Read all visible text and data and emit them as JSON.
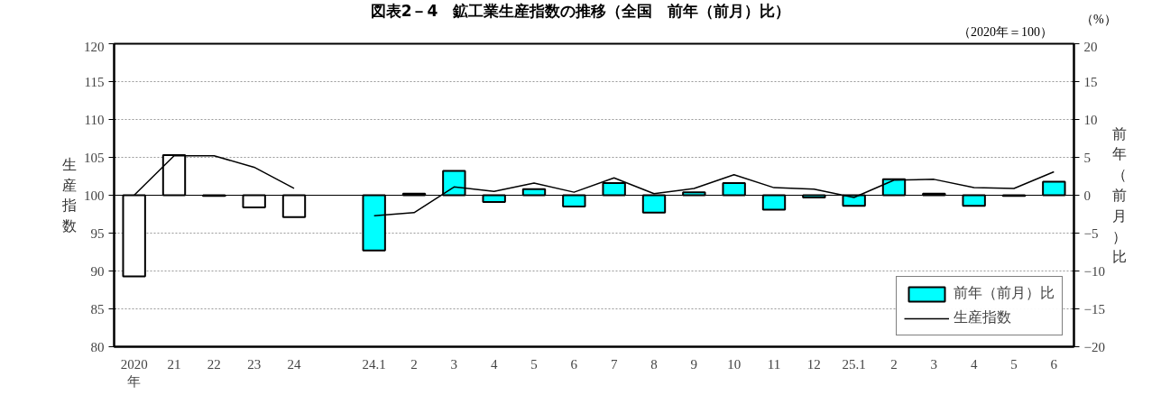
{
  "chart_data": {
    "type": "bar",
    "title": "図表2－4　鉱工業生産指数の推移（全国　前年（前月）比）",
    "ylabel": "生産指数",
    "y2label": "前年（前月）比",
    "annotations": [
      "（2020年＝100）",
      "（%）"
    ],
    "categories": [
      "2020\n年",
      "21",
      "22",
      "23",
      "24",
      null,
      "24.1",
      "2",
      "3",
      "4",
      "5",
      "6",
      "7",
      "8",
      "9",
      "10",
      "11",
      "12",
      "25.1",
      "2",
      "3",
      "4",
      "5",
      "6"
    ],
    "series": [
      {
        "name": "前年（前月）比",
        "axis": "y2",
        "colors": [
          "#ffffff",
          "#ffffff",
          "#ffffff",
          "#ffffff",
          "#ffffff",
          null,
          "#00ffff",
          "#00ffff",
          "#00ffff",
          "#00ffff",
          "#00ffff",
          "#00ffff",
          "#00ffff",
          "#00ffff",
          "#00ffff",
          "#00ffff",
          "#00ffff",
          "#00ffff",
          "#00ffff",
          "#00ffff",
          "#00ffff",
          "#00ffff",
          "#00ffff",
          "#00ffff"
        ],
        "values": [
          -10.7,
          5.3,
          -0.1,
          -1.6,
          -2.9,
          null,
          -7.3,
          0.2,
          3.2,
          -0.9,
          0.8,
          -1.5,
          1.6,
          -2.3,
          0.4,
          1.6,
          -1.9,
          -0.3,
          -1.4,
          2.1,
          0.2,
          -1.4,
          -0.1,
          1.8
        ]
      },
      {
        "name": "生産指数",
        "type": "line",
        "color": "#000000",
        "values": [
          100,
          105.2,
          105.2,
          103.7,
          100.9,
          null,
          97.3,
          97.7,
          101.1,
          100.5,
          101.6,
          100.4,
          102.3,
          100.2,
          100.9,
          102.7,
          101.0,
          100.8,
          99.7,
          102.0,
          102.1,
          101.0,
          100.9,
          103.1
        ]
      }
    ],
    "ylim": [
      80,
      120
    ],
    "yticks": [
      80,
      85,
      90,
      95,
      100,
      105,
      110,
      115,
      120
    ],
    "y2lim": [
      -20,
      20
    ],
    "y2ticks": [
      -20,
      -15,
      -10,
      -5,
      0,
      5,
      10,
      15,
      20
    ],
    "grid": "y",
    "legend": "bottom right",
    "line_style": "solid"
  }
}
